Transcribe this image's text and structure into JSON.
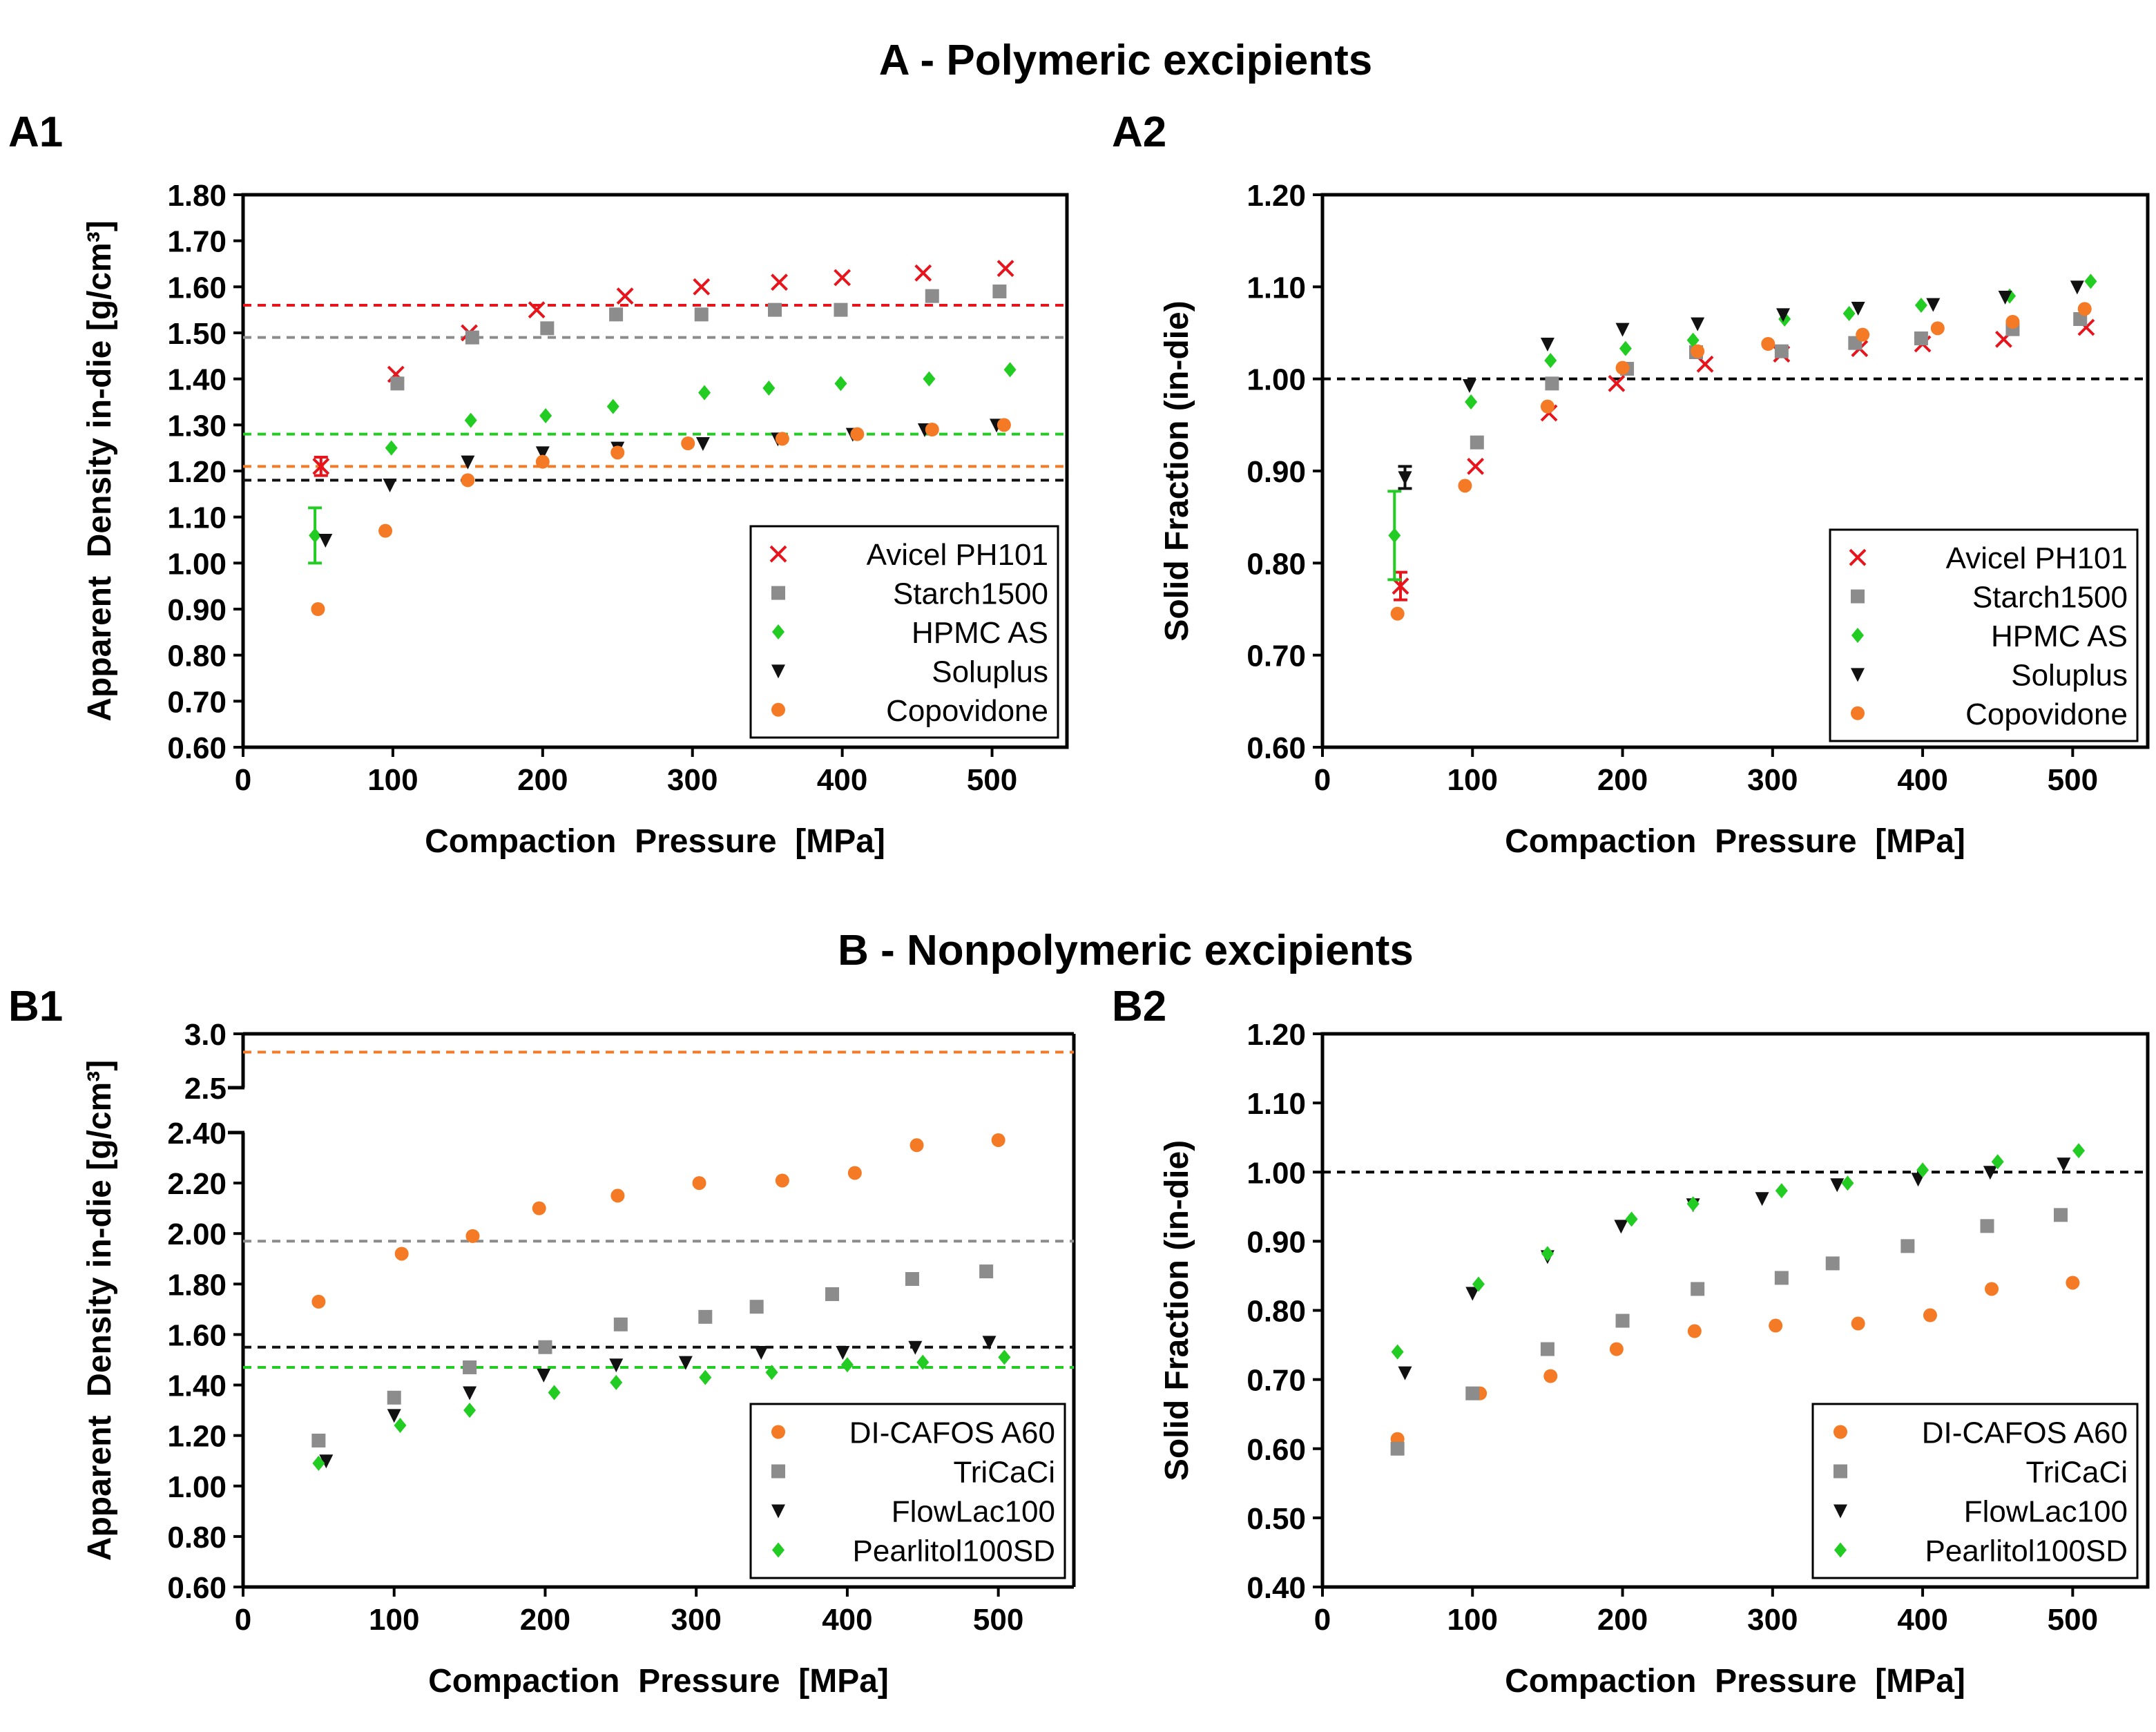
{
  "figure": {
    "section_a_title": "A - Polymeric excipients",
    "section_b_title": "B - Nonpolymeric excipients"
  },
  "chart_data": [
    {
      "id": "A1",
      "panel_label": "A1",
      "type": "scatter",
      "xlabel": "Compaction  Pressure  [MPa]",
      "ylabel": "Apparent  Density in-die [g/cm³]",
      "xlim": [
        0,
        550
      ],
      "ylim": [
        0.6,
        1.8
      ],
      "xticks": [
        0,
        100,
        200,
        300,
        400,
        500
      ],
      "yticks": [
        0.6,
        0.7,
        0.8,
        0.9,
        1.0,
        1.1,
        1.2,
        1.3,
        1.4,
        1.5,
        1.6,
        1.7,
        1.8
      ],
      "ytick_labels": [
        "0.60",
        "0.70",
        "0.80",
        "0.90",
        "1.00",
        "1.10",
        "1.20",
        "1.30",
        "1.40",
        "1.50",
        "1.60",
        "1.70",
        "1.80"
      ],
      "legend_position": "bottom-right",
      "series": [
        {
          "name": "Avicel PH101",
          "marker": "x",
          "color": "#e8141c",
          "x": [
            52,
            102,
            151,
            196,
            255,
            306,
            358,
            400,
            454,
            509
          ],
          "y": [
            1.21,
            1.41,
            1.5,
            1.55,
            1.58,
            1.6,
            1.61,
            1.62,
            1.63,
            1.64
          ],
          "error": [
            0.02,
            0,
            0,
            0,
            0,
            0,
            0,
            0,
            0,
            0
          ],
          "reference": 1.56
        },
        {
          "name": "Starch1500",
          "marker": "square",
          "color": "#8c8c8c",
          "x": [
            103,
            153,
            203,
            249,
            306,
            355,
            399,
            460,
            505
          ],
          "y": [
            1.39,
            1.49,
            1.51,
            1.54,
            1.54,
            1.55,
            1.55,
            1.58,
            1.59
          ],
          "reference": 1.49
        },
        {
          "name": "HPMC AS",
          "marker": "diamond",
          "color": "#22cc22",
          "x": [
            48,
            99,
            152,
            202,
            247,
            308,
            351,
            399,
            458,
            512
          ],
          "y": [
            1.06,
            1.25,
            1.31,
            1.32,
            1.34,
            1.37,
            1.38,
            1.39,
            1.4,
            1.42
          ],
          "error": [
            0.06,
            0,
            0,
            0,
            0,
            0,
            0,
            0,
            0,
            0
          ],
          "reference": 1.28
        },
        {
          "name": "Soluplus",
          "marker": "triangle-down",
          "color": "#111111",
          "x": [
            55,
            98,
            150,
            200,
            250,
            307,
            357,
            407,
            455,
            503
          ],
          "y": [
            1.05,
            1.17,
            1.22,
            1.24,
            1.25,
            1.26,
            1.27,
            1.28,
            1.29,
            1.3
          ],
          "reference": 1.18
        },
        {
          "name": "Copovidone",
          "marker": "circle",
          "color": "#f47a25",
          "x": [
            50,
            95,
            150,
            200,
            250,
            297,
            360,
            410,
            460,
            508
          ],
          "y": [
            0.9,
            1.07,
            1.18,
            1.22,
            1.24,
            1.26,
            1.27,
            1.28,
            1.29,
            1.3
          ],
          "reference": 1.21
        }
      ]
    },
    {
      "id": "A2",
      "panel_label": "A2",
      "type": "scatter",
      "xlabel": "Compaction  Pressure  [MPa]",
      "ylabel": "Solid Fraction (in-die)",
      "xlim": [
        0,
        550
      ],
      "ylim": [
        0.6,
        1.2
      ],
      "xticks": [
        0,
        100,
        200,
        300,
        400,
        500
      ],
      "yticks": [
        0.6,
        0.7,
        0.8,
        0.9,
        1.0,
        1.1,
        1.2
      ],
      "ytick_labels": [
        "0.60",
        "0.70",
        "0.80",
        "0.90",
        "1.00",
        "1.10",
        "1.20"
      ],
      "reference_line": 1.0,
      "legend_position": "bottom-right",
      "series": [
        {
          "name": "Avicel PH101",
          "marker": "x",
          "color": "#e8141c",
          "x": [
            52,
            102,
            151,
            196,
            255,
            306,
            358,
            400,
            454,
            509
          ],
          "y": [
            0.775,
            0.905,
            0.963,
            0.995,
            1.016,
            1.027,
            1.033,
            1.038,
            1.043,
            1.056
          ],
          "error": [
            0.015,
            0,
            0,
            0,
            0,
            0,
            0,
            0,
            0,
            0
          ]
        },
        {
          "name": "Starch1500",
          "marker": "square",
          "color": "#8c8c8c",
          "x": [
            103,
            153,
            203,
            249,
            306,
            355,
            399,
            460,
            505
          ],
          "y": [
            0.931,
            0.995,
            1.011,
            1.029,
            1.03,
            1.039,
            1.044,
            1.054,
            1.065
          ]
        },
        {
          "name": "HPMC AS",
          "marker": "diamond",
          "color": "#22cc22",
          "x": [
            48,
            99,
            152,
            202,
            247,
            308,
            351,
            399,
            458,
            512
          ],
          "y": [
            0.83,
            0.975,
            1.02,
            1.033,
            1.042,
            1.065,
            1.071,
            1.08,
            1.09,
            1.106
          ],
          "error": [
            0.048,
            0,
            0,
            0,
            0,
            0,
            0,
            0,
            0,
            0
          ]
        },
        {
          "name": "Soluplus",
          "marker": "triangle-down",
          "color": "#111111",
          "x": [
            55,
            98,
            150,
            200,
            250,
            307,
            357,
            407,
            455,
            503
          ],
          "y": [
            0.893,
            0.993,
            1.038,
            1.054,
            1.06,
            1.07,
            1.077,
            1.081,
            1.089,
            1.1
          ],
          "error": [
            0.012,
            0,
            0,
            0,
            0,
            0,
            0,
            0,
            0,
            0
          ]
        },
        {
          "name": "Copovidone",
          "marker": "circle",
          "color": "#f47a25",
          "x": [
            50,
            95,
            150,
            200,
            250,
            297,
            360,
            410,
            460,
            508
          ],
          "y": [
            0.745,
            0.884,
            0.97,
            1.012,
            1.03,
            1.038,
            1.048,
            1.055,
            1.062,
            1.076
          ]
        }
      ]
    },
    {
      "id": "B1",
      "panel_label": "B1",
      "type": "scatter",
      "xlabel": "Compaction  Pressure  [MPa]",
      "ylabel": "Apparent  Density in-die [g/cm³]",
      "xlim": [
        0,
        550
      ],
      "ylim": [
        0.6,
        2.4
      ],
      "y_break": {
        "upper_ylim": [
          2.4,
          3.0
        ],
        "upper_ticks": [
          2.5,
          3.0
        ],
        "upper_tick_labels": [
          "2.5",
          "3.0"
        ]
      },
      "xticks": [
        0,
        100,
        200,
        300,
        400,
        500
      ],
      "yticks": [
        0.6,
        0.8,
        1.0,
        1.2,
        1.4,
        1.6,
        1.8,
        2.0,
        2.2,
        2.4
      ],
      "ytick_labels": [
        "0.60",
        "0.80",
        "1.00",
        "1.20",
        "1.40",
        "1.60",
        "1.80",
        "2.00",
        "2.20",
        "2.40"
      ],
      "legend_position": "bottom-right",
      "series": [
        {
          "name": "DI-CAFOS A60",
          "marker": "circle",
          "color": "#f47a25",
          "x": [
            50,
            105,
            152,
            196,
            248,
            302,
            357,
            405,
            446,
            500
          ],
          "y": [
            1.73,
            1.92,
            1.99,
            2.1,
            2.15,
            2.2,
            2.21,
            2.24,
            2.35,
            2.37
          ],
          "reference": 2.83
        },
        {
          "name": "TriCaCi",
          "marker": "square",
          "color": "#8c8c8c",
          "x": [
            50,
            100,
            150,
            200,
            250,
            306,
            340,
            390,
            443,
            492
          ],
          "y": [
            1.18,
            1.35,
            1.47,
            1.55,
            1.64,
            1.67,
            1.71,
            1.76,
            1.82,
            1.85
          ],
          "reference": 1.97
        },
        {
          "name": "FlowLac100",
          "marker": "triangle-down",
          "color": "#111111",
          "x": [
            55,
            100,
            150,
            199,
            247,
            293,
            343,
            397,
            445,
            494
          ],
          "y": [
            1.1,
            1.28,
            1.37,
            1.44,
            1.48,
            1.49,
            1.53,
            1.53,
            1.55,
            1.57
          ],
          "reference": 1.55
        },
        {
          "name": "Pearlitol100SD",
          "marker": "diamond",
          "color": "#22cc22",
          "x": [
            50,
            104,
            150,
            206,
            247,
            306,
            350,
            400,
            450,
            504
          ],
          "y": [
            1.09,
            1.24,
            1.3,
            1.37,
            1.41,
            1.43,
            1.45,
            1.48,
            1.49,
            1.51
          ],
          "reference": 1.47
        }
      ]
    },
    {
      "id": "B2",
      "panel_label": "B2",
      "type": "scatter",
      "xlabel": "Compaction  Pressure  [MPa]",
      "ylabel": "Solid Fraction (in-die)",
      "xlim": [
        0,
        550
      ],
      "ylim": [
        0.4,
        1.2
      ],
      "xticks": [
        0,
        100,
        200,
        300,
        400,
        500
      ],
      "yticks": [
        0.4,
        0.5,
        0.6,
        0.7,
        0.8,
        0.9,
        1.0,
        1.1,
        1.2
      ],
      "ytick_labels": [
        "0.40",
        "0.50",
        "0.60",
        "0.70",
        "0.80",
        "0.90",
        "1.00",
        "1.10",
        "1.20"
      ],
      "reference_line": 1.0,
      "legend_position": "bottom-right",
      "series": [
        {
          "name": "DI-CAFOS A60",
          "marker": "circle",
          "color": "#f47a25",
          "x": [
            50,
            105,
            152,
            196,
            248,
            302,
            357,
            405,
            446,
            500
          ],
          "y": [
            0.614,
            0.68,
            0.705,
            0.744,
            0.77,
            0.778,
            0.781,
            0.793,
            0.831,
            0.84
          ]
        },
        {
          "name": "TriCaCi",
          "marker": "square",
          "color": "#8c8c8c",
          "x": [
            50,
            100,
            150,
            200,
            250,
            306,
            340,
            390,
            443,
            492
          ],
          "y": [
            0.6,
            0.68,
            0.744,
            0.785,
            0.831,
            0.847,
            0.868,
            0.893,
            0.922,
            0.938
          ]
        },
        {
          "name": "FlowLac100",
          "marker": "triangle-down",
          "color": "#111111",
          "x": [
            55,
            100,
            150,
            199,
            247,
            293,
            343,
            397,
            445,
            494
          ],
          "y": [
            0.71,
            0.825,
            0.878,
            0.922,
            0.953,
            0.962,
            0.982,
            0.99,
            1.0,
            1.012
          ]
        },
        {
          "name": "Pearlitol100SD",
          "marker": "diamond",
          "color": "#22cc22",
          "x": [
            50,
            104,
            150,
            206,
            247,
            306,
            350,
            400,
            450,
            504
          ],
          "y": [
            0.74,
            0.838,
            0.882,
            0.932,
            0.954,
            0.973,
            0.984,
            1.003,
            1.015,
            1.031
          ]
        }
      ]
    }
  ]
}
